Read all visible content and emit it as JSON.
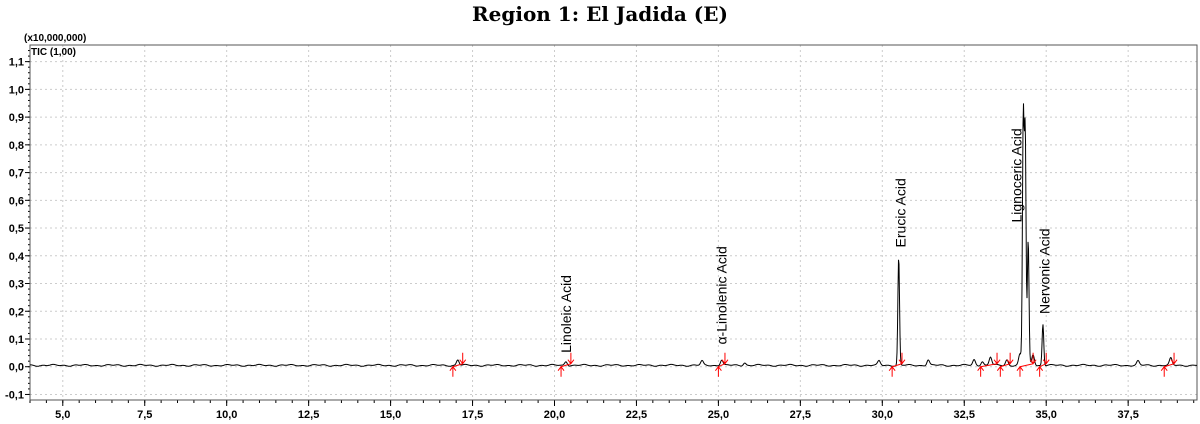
{
  "chart_data": {
    "type": "line",
    "title": "Region 1:  El Jadida (E)",
    "y_multiplier": "(x10,000,000)",
    "trace_label": "TIC (1,00)",
    "xlim": [
      4.0,
      39.6
    ],
    "ylim": [
      -0.12,
      1.16
    ],
    "x_ticks": [
      "5,0",
      "7,5",
      "10,0",
      "12,5",
      "15,0",
      "17,5",
      "20,0",
      "22,5",
      "25,0",
      "27,5",
      "30,0",
      "32,5",
      "35,0",
      "37,5"
    ],
    "x_tick_values": [
      5,
      7.5,
      10,
      12.5,
      15,
      17.5,
      20,
      22.5,
      25,
      27.5,
      30,
      32.5,
      35,
      37.5
    ],
    "y_ticks": [
      "-0,1",
      "0,0",
      "0,1",
      "0,2",
      "0,3",
      "0,4",
      "0,5",
      "0,6",
      "0,7",
      "0,8",
      "0,9",
      "1,0",
      "1,1"
    ],
    "y_tick_values": [
      -0.1,
      0,
      0.1,
      0.2,
      0.3,
      0.4,
      0.5,
      0.6,
      0.7,
      0.8,
      0.9,
      1.0,
      1.1
    ],
    "grid": true,
    "line_color": "#000000",
    "marker_color": "#ff0000",
    "baseline": 0.005,
    "peaks": [
      {
        "rt": 17.05,
        "height": 0.02
      },
      {
        "rt": 20.35,
        "height": 0.015
      },
      {
        "rt": 24.5,
        "height": 0.015
      },
      {
        "rt": 25.1,
        "height": 0.02
      },
      {
        "rt": 25.8,
        "height": 0.01
      },
      {
        "rt": 29.9,
        "height": 0.015
      },
      {
        "rt": 30.5,
        "height": 0.39
      },
      {
        "rt": 31.4,
        "height": 0.02
      },
      {
        "rt": 32.8,
        "height": 0.02
      },
      {
        "rt": 33.05,
        "height": 0.015
      },
      {
        "rt": 33.3,
        "height": 0.03
      },
      {
        "rt": 33.8,
        "height": 0.02
      },
      {
        "rt": 34.2,
        "height": 0.04
      },
      {
        "rt": 34.3,
        "height": 0.89
      },
      {
        "rt": 34.36,
        "height": 0.83
      },
      {
        "rt": 34.45,
        "height": 0.45
      },
      {
        "rt": 34.6,
        "height": 0.04
      },
      {
        "rt": 34.9,
        "height": 0.15
      },
      {
        "rt": 37.8,
        "height": 0.015
      },
      {
        "rt": 38.8,
        "height": 0.025
      }
    ],
    "integration_markers": [
      [
        16.9,
        17.2
      ],
      [
        20.2,
        20.5
      ],
      [
        25.0,
        25.2
      ],
      [
        30.3,
        30.6
      ],
      [
        33.0,
        33.5
      ],
      [
        33.6,
        33.9
      ],
      [
        34.2,
        34.6
      ],
      [
        34.8,
        35.0
      ],
      [
        38.6,
        38.9
      ]
    ],
    "annotations": [
      {
        "text": "Linoleic Acid",
        "x": 20.35,
        "y": 0.05
      },
      {
        "text": "α-Linolenic Acid",
        "x": 25.1,
        "y": 0.08
      },
      {
        "text": "Erucic Acid",
        "x": 30.55,
        "y": 0.43
      },
      {
        "text": "Lignoceric Acid",
        "x": 34.1,
        "y": 0.52
      },
      {
        "text": "Nervonic Acid",
        "x": 34.95,
        "y": 0.19
      }
    ]
  }
}
